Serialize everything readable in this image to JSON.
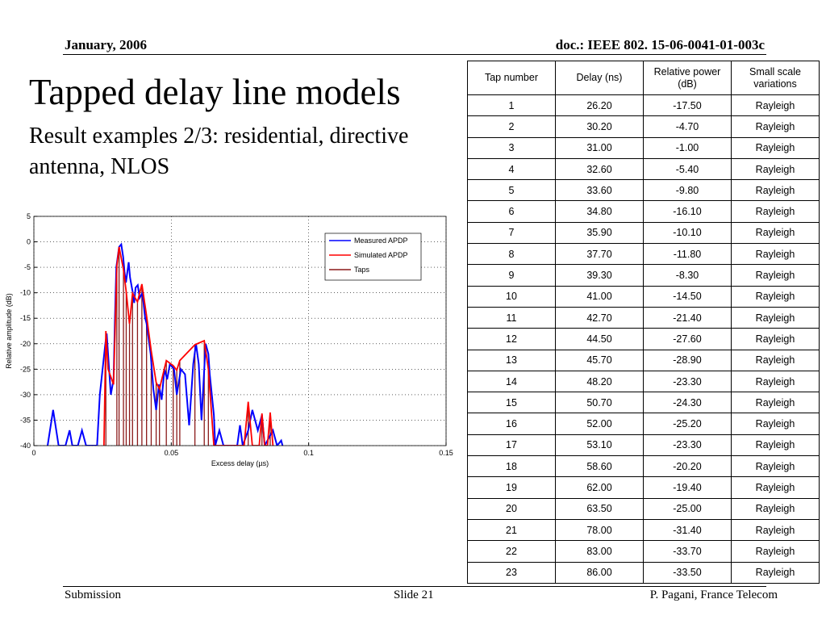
{
  "header": {
    "date": "January, 2006",
    "doc": "doc.: IEEE 802. 15-06-0041-01-003c"
  },
  "title": "Tapped delay line models",
  "subtitle": "Result examples 2/3: residential, directive antenna, NLOS",
  "table": {
    "columns": [
      "Tap number",
      "Delay (ns)",
      "Relative power (dB)",
      "Small scale variations"
    ],
    "rows": [
      [
        "1",
        "26.20",
        "-17.50",
        "Rayleigh"
      ],
      [
        "2",
        "30.20",
        "-4.70",
        "Rayleigh"
      ],
      [
        "3",
        "31.00",
        "-1.00",
        "Rayleigh"
      ],
      [
        "4",
        "32.60",
        "-5.40",
        "Rayleigh"
      ],
      [
        "5",
        "33.60",
        "-9.80",
        "Rayleigh"
      ],
      [
        "6",
        "34.80",
        "-16.10",
        "Rayleigh"
      ],
      [
        "7",
        "35.90",
        "-10.10",
        "Rayleigh"
      ],
      [
        "8",
        "37.70",
        "-11.80",
        "Rayleigh"
      ],
      [
        "9",
        "39.30",
        "-8.30",
        "Rayleigh"
      ],
      [
        "10",
        "41.00",
        "-14.50",
        "Rayleigh"
      ],
      [
        "11",
        "42.70",
        "-21.40",
        "Rayleigh"
      ],
      [
        "12",
        "44.50",
        "-27.60",
        "Rayleigh"
      ],
      [
        "13",
        "45.70",
        "-28.90",
        "Rayleigh"
      ],
      [
        "14",
        "48.20",
        "-23.30",
        "Rayleigh"
      ],
      [
        "15",
        "50.70",
        "-24.30",
        "Rayleigh"
      ],
      [
        "16",
        "52.00",
        "-25.20",
        "Rayleigh"
      ],
      [
        "17",
        "53.10",
        "-23.30",
        "Rayleigh"
      ],
      [
        "18",
        "58.60",
        "-20.20",
        "Rayleigh"
      ],
      [
        "19",
        "62.00",
        "-19.40",
        "Rayleigh"
      ],
      [
        "20",
        "63.50",
        "-25.00",
        "Rayleigh"
      ],
      [
        "21",
        "78.00",
        "-31.40",
        "Rayleigh"
      ],
      [
        "22",
        "83.00",
        "-33.70",
        "Rayleigh"
      ],
      [
        "23",
        "86.00",
        "-33.50",
        "Rayleigh"
      ]
    ]
  },
  "chart_data": {
    "type": "line",
    "xlabel": "Excess delay (µs)",
    "ylabel": "Relative amplitude (dB)",
    "xlim": [
      0,
      0.15
    ],
    "ylim": [
      -40,
      5
    ],
    "xticks": [
      0,
      0.05,
      0.1,
      0.15
    ],
    "yticks": [
      5,
      0,
      -5,
      -10,
      -15,
      -20,
      -25,
      -30,
      -35,
      -40
    ],
    "grid": true,
    "legend": "upper right",
    "series": [
      {
        "name": "Measured APDP",
        "color": "#0000ff",
        "style": "line",
        "x": [
          0.005,
          0.007,
          0.009,
          0.0115,
          0.013,
          0.014,
          0.016,
          0.0175,
          0.019,
          0.023,
          0.024,
          0.025,
          0.026,
          0.0265,
          0.027,
          0.028,
          0.029,
          0.0295,
          0.03,
          0.0305,
          0.031,
          0.0318,
          0.0325,
          0.033,
          0.0335,
          0.0345,
          0.035,
          0.036,
          0.0365,
          0.037,
          0.0378,
          0.0385,
          0.0395,
          0.0405,
          0.041,
          0.042,
          0.0425,
          0.0435,
          0.0445,
          0.0455,
          0.0465,
          0.0475,
          0.0485,
          0.0495,
          0.051,
          0.052,
          0.0535,
          0.055,
          0.0565,
          0.058,
          0.059,
          0.06,
          0.061,
          0.0625,
          0.0635,
          0.064,
          0.0655,
          0.066,
          0.0675,
          0.069,
          0.074,
          0.075,
          0.076,
          0.078,
          0.0795,
          0.0815,
          0.083,
          0.084,
          0.087,
          0.0885,
          0.09,
          0.0905
        ],
        "values": [
          -40,
          -33,
          -40,
          -40,
          -37,
          -40,
          -40,
          -37,
          -40,
          -40,
          -30,
          -25,
          -20,
          -18,
          -22,
          -30,
          -27,
          -15,
          -5,
          -3,
          -1,
          -0.5,
          -3,
          -6,
          -8,
          -4,
          -7,
          -10,
          -12,
          -9,
          -8.5,
          -11,
          -10,
          -15,
          -16,
          -20,
          -22,
          -29,
          -33,
          -28,
          -31,
          -25,
          -27,
          -24,
          -25,
          -30,
          -25,
          -26,
          -36,
          -24,
          -20,
          -24,
          -35,
          -20,
          -22,
          -26,
          -34,
          -40,
          -37,
          -40,
          -40,
          -36,
          -40,
          -37,
          -33,
          -37,
          -34,
          -40,
          -37,
          -40,
          -39,
          -40
        ]
      },
      {
        "name": "Simulated APDP",
        "color": "#ff0000",
        "style": "line",
        "x": [
          0.0255,
          0.0262,
          0.027,
          0.029,
          0.0302,
          0.031,
          0.0326,
          0.0336,
          0.0348,
          0.0359,
          0.0377,
          0.0393,
          0.041,
          0.0427,
          0.0445,
          0.0457,
          0.0482,
          0.0507,
          0.052,
          0.0531,
          0.0586,
          0.062,
          0.0635,
          0.0655,
          0.0765,
          0.078,
          0.0795,
          0.082,
          0.083,
          0.084,
          0.085,
          0.086,
          0.087
        ],
        "values": [
          -40,
          -17.5,
          -25,
          -28,
          -4.7,
          -1,
          -5.4,
          -9.8,
          -16.1,
          -10.1,
          -11.8,
          -8.3,
          -14.5,
          -21.4,
          -27.6,
          -28.9,
          -23.3,
          -24.3,
          -25.2,
          -23.3,
          -20.2,
          -19.4,
          -25,
          -40,
          -40,
          -31.4,
          -40,
          -40,
          -33.7,
          -40,
          -40,
          -33.5,
          -40
        ]
      },
      {
        "name": "Taps",
        "color": "#8b1a1a",
        "style": "stem",
        "x": [
          0.0262,
          0.0302,
          0.031,
          0.0326,
          0.0336,
          0.0348,
          0.0359,
          0.0377,
          0.0393,
          0.041,
          0.0427,
          0.0445,
          0.0457,
          0.0482,
          0.0507,
          0.052,
          0.0531,
          0.0586,
          0.062,
          0.0635,
          0.078,
          0.083,
          0.086
        ],
        "values": [
          -17.5,
          -4.7,
          -1,
          -5.4,
          -9.8,
          -16.1,
          -10.1,
          -11.8,
          -8.3,
          -14.5,
          -21.4,
          -27.6,
          -28.9,
          -23.3,
          -24.3,
          -25.2,
          -23.3,
          -20.2,
          -19.4,
          -25,
          -31.4,
          -33.7,
          -33.5
        ]
      }
    ]
  },
  "footer": {
    "left": "Submission",
    "center": "Slide 21",
    "right": "P. Pagani, France Telecom"
  }
}
